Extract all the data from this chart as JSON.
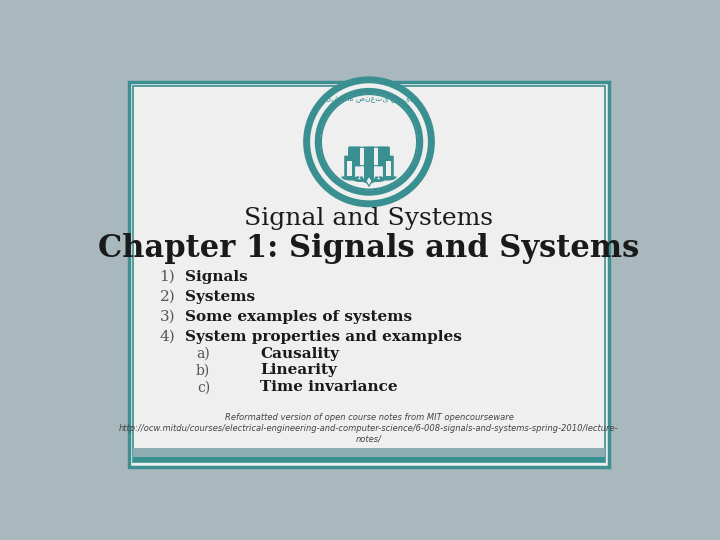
{
  "bg_outer": "#a8b8bc",
  "bg_slide": "#efefef",
  "border_color": "#3d8f91",
  "title_line1": "Signal and Systems",
  "title_line2": "Chapter 1: Signals and Systems",
  "title1_fontsize": 18,
  "title2_fontsize": 22,
  "title_color": "#1a1a1a",
  "items": [
    "Signals",
    "Systems",
    "Some examples of systems",
    "System properties and examples"
  ],
  "subitems": [
    "Causality",
    "Linearity",
    "Time invariance"
  ],
  "subitem_labels": [
    "a)",
    "b)",
    "c)"
  ],
  "item_fontsize": 11,
  "subitem_fontsize": 11,
  "footer_text": "Reformatted version of open course notes from MIT opencourseware\nhttp://ocw.mitdu/courses/electrical-engineering-and-computer-science/6-008-signals-and-systems-spring-2010/lecture-\nnotes/",
  "footer_fontsize": 6,
  "teal_color": "#3a8f91",
  "bar_light_color": "#8eadb2",
  "bar_dark_color": "#3a8f91"
}
